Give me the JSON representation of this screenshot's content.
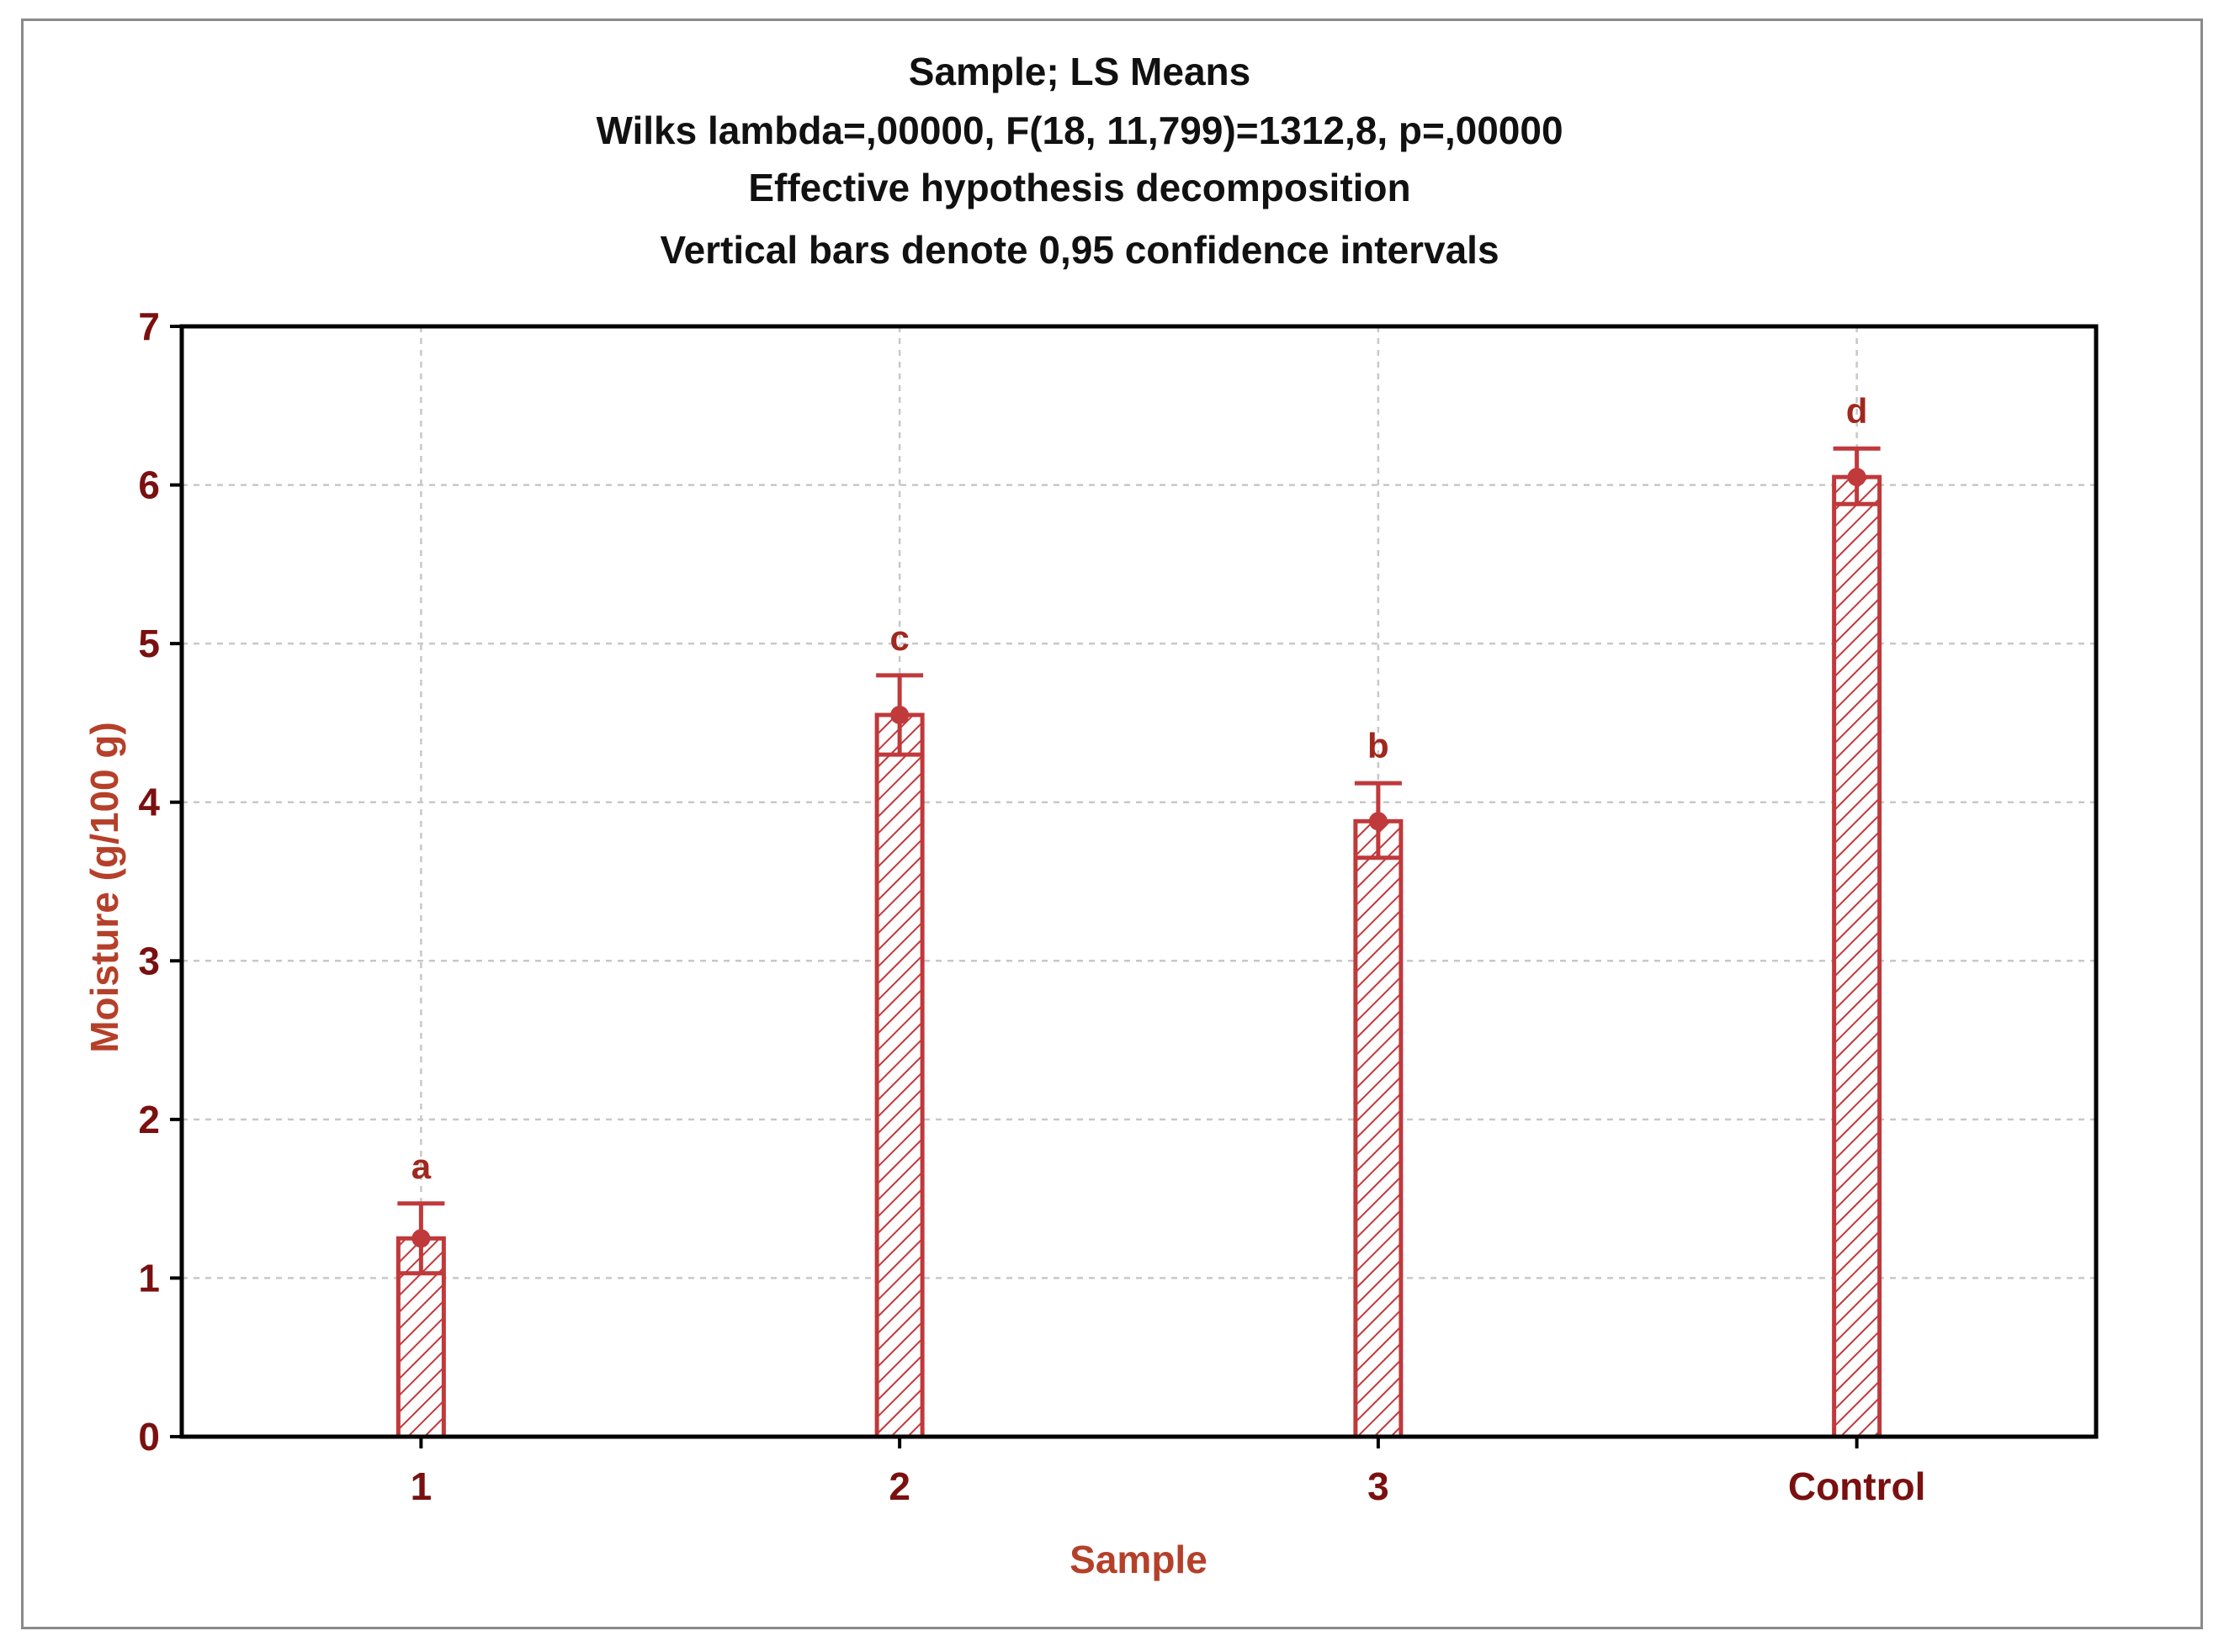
{
  "chart_data": {
    "type": "bar",
    "title_lines": [
      "Sample; LS Means",
      "Wilks lambda=,00000, F(18, 11,799)=1312,8, p=,00000",
      "Effective hypothesis decomposition",
      "Vertical bars denote 0,95 confidence intervals"
    ],
    "xlabel": "Sample",
    "ylabel": "Moisture (g/100 g)",
    "categories": [
      "1",
      "2",
      "3",
      "Control"
    ],
    "values": [
      1.25,
      4.55,
      3.88,
      6.05
    ],
    "ci_lower": [
      1.03,
      4.3,
      3.65,
      5.88
    ],
    "ci_upper": [
      1.47,
      4.8,
      4.12,
      6.23
    ],
    "group_letters": [
      "a",
      "c",
      "b",
      "d"
    ],
    "ylim": [
      0,
      7
    ],
    "yticks": [
      "0",
      "1",
      "2",
      "3",
      "4",
      "5",
      "6",
      "7"
    ],
    "grid": true,
    "bar_pattern": "diagonal-hatch",
    "colors": {
      "bar": "#c0393b",
      "axis_text": "#7a1010",
      "axis_label": "#b5402a",
      "grid": "#c8c8c8",
      "title": "#111111"
    }
  }
}
